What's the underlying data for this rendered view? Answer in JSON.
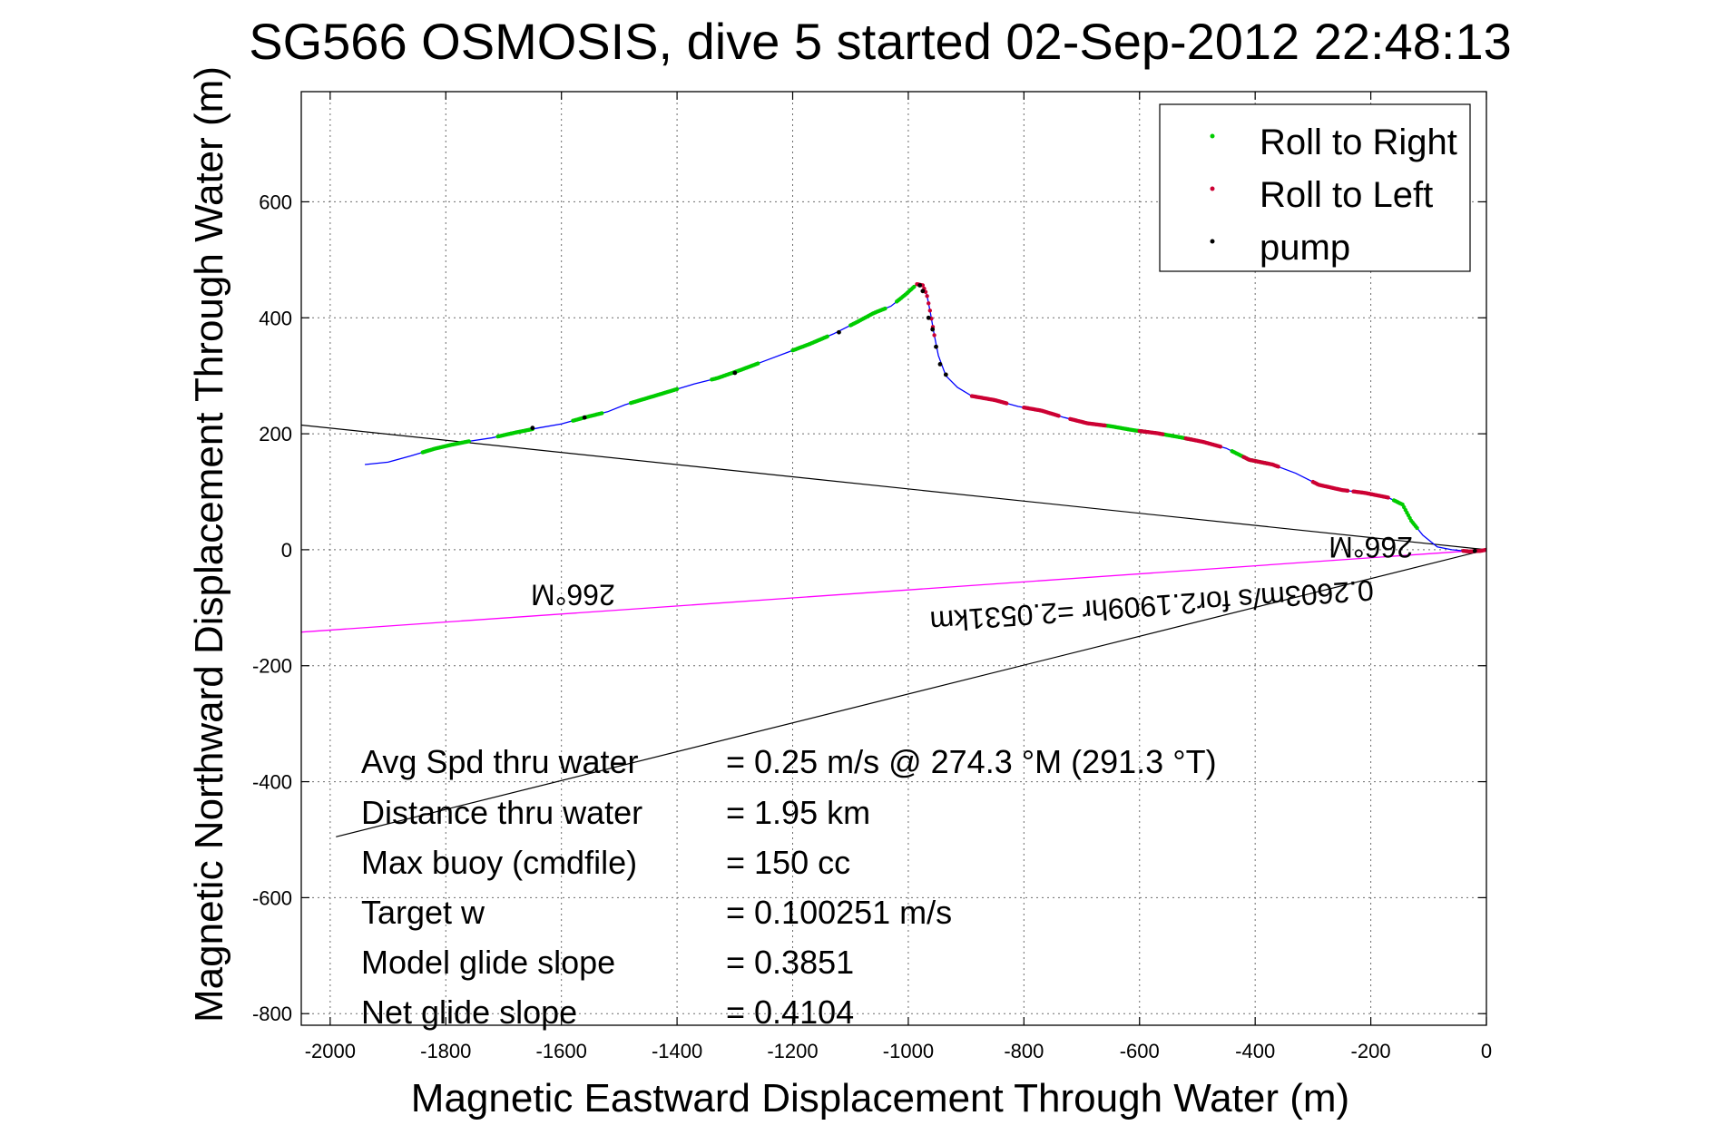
{
  "chart_data": {
    "type": "scatter",
    "title": "SG566 OSMOSIS, dive 5 started 02-Sep-2012 22:48:13",
    "xlabel": "Magnetic Eastward Displacement Through Water (m)",
    "ylabel": "Magnetic Northward Displacement Through Water (m)",
    "xlim": [
      -2050,
      0
    ],
    "ylim": [
      -820,
      790
    ],
    "xticks": [
      -2000,
      -1800,
      -1600,
      -1400,
      -1200,
      -1000,
      -800,
      -600,
      -400,
      -200,
      0
    ],
    "yticks": [
      -800,
      -600,
      -400,
      -200,
      0,
      200,
      400,
      600
    ],
    "grid": true,
    "legend_position": "top-right",
    "legend": [
      "Roll to Right",
      "Roll to Left",
      "pump"
    ],
    "colors": {
      "track": "#0000ff",
      "roll_right": "#00cc00",
      "roll_left": "#cc0033",
      "pump": "#000000",
      "reference_lines": "#000000",
      "current_line": "#ff00ff"
    },
    "track": {
      "name": "track",
      "points": [
        [
          -1940,
          147
        ],
        [
          -1900,
          151
        ],
        [
          -1860,
          162
        ],
        [
          -1820,
          174
        ],
        [
          -1790,
          181
        ],
        [
          -1760,
          187
        ],
        [
          -1720,
          193
        ],
        [
          -1680,
          202
        ],
        [
          -1640,
          210
        ],
        [
          -1600,
          217
        ],
        [
          -1560,
          228
        ],
        [
          -1520,
          238
        ],
        [
          -1490,
          250
        ],
        [
          -1450,
          262
        ],
        [
          -1410,
          274
        ],
        [
          -1370,
          286
        ],
        [
          -1330,
          296
        ],
        [
          -1290,
          310
        ],
        [
          -1250,
          325
        ],
        [
          -1210,
          340
        ],
        [
          -1170,
          355
        ],
        [
          -1130,
          372
        ],
        [
          -1090,
          392
        ],
        [
          -1060,
          408
        ],
        [
          -1030,
          420
        ],
        [
          -1005,
          440
        ],
        [
          -985,
          458
        ],
        [
          -975,
          456
        ],
        [
          -968,
          440
        ],
        [
          -962,
          410
        ],
        [
          -955,
          370
        ],
        [
          -948,
          335
        ],
        [
          -935,
          300
        ],
        [
          -915,
          280
        ],
        [
          -890,
          265
        ],
        [
          -850,
          258
        ],
        [
          -810,
          247
        ],
        [
          -770,
          240
        ],
        [
          -730,
          228
        ],
        [
          -690,
          218
        ],
        [
          -650,
          213
        ],
        [
          -610,
          206
        ],
        [
          -570,
          201
        ],
        [
          -530,
          194
        ],
        [
          -490,
          186
        ],
        [
          -450,
          175
        ],
        [
          -410,
          155
        ],
        [
          -370,
          147
        ],
        [
          -330,
          132
        ],
        [
          -290,
          112
        ],
        [
          -250,
          103
        ],
        [
          -210,
          98
        ],
        [
          -170,
          90
        ],
        [
          -145,
          78
        ],
        [
          -130,
          50
        ],
        [
          -110,
          25
        ],
        [
          -85,
          5
        ],
        [
          -60,
          0
        ],
        [
          -30,
          -3
        ],
        [
          -10,
          -2
        ],
        [
          0,
          0
        ]
      ]
    },
    "roll_right_segments": [
      [
        -1840,
        -1760
      ],
      [
        -1710,
        -1650
      ],
      [
        -1580,
        -1530
      ],
      [
        -1480,
        -1400
      ],
      [
        -1340,
        -1260
      ],
      [
        -1200,
        -1140
      ],
      [
        -1100,
        -1040
      ],
      [
        -1020,
        -990
      ],
      [
        -660,
        -590
      ],
      [
        -560,
        -510
      ],
      [
        -440,
        -380
      ],
      [
        -160,
        -120
      ]
    ],
    "roll_left_segments": [
      [
        -985,
        -955
      ],
      [
        -890,
        -830
      ],
      [
        -800,
        -740
      ],
      [
        -720,
        -660
      ],
      [
        -600,
        -560
      ],
      [
        -520,
        -460
      ],
      [
        -420,
        -360
      ],
      [
        -300,
        -240
      ],
      [
        -230,
        -170
      ],
      [
        -40,
        0
      ]
    ],
    "pump_points": [
      [
        -1650,
        210
      ],
      [
        -1560,
        228
      ],
      [
        -1300,
        305
      ],
      [
        -1120,
        375
      ],
      [
        -980,
        456
      ],
      [
        -975,
        446
      ],
      [
        -965,
        400
      ],
      [
        -958,
        380
      ],
      [
        -952,
        350
      ],
      [
        -945,
        320
      ],
      [
        -935,
        302
      ],
      [
        -20,
        -2
      ]
    ],
    "reference_lines": [
      {
        "name": "heading-line-upper",
        "from": [
          -2050,
          215
        ],
        "to": [
          0,
          0
        ]
      },
      {
        "name": "heading-line-lower",
        "from": [
          -1990,
          -495
        ],
        "to": [
          0,
          0
        ]
      }
    ],
    "current_line": {
      "name": "current-line",
      "from": [
        -2050,
        -142
      ],
      "to": [
        0,
        0
      ]
    },
    "annotations": [
      {
        "text": "266°M",
        "x": -1580,
        "y": -60,
        "rotation": 180
      },
      {
        "text": "266°M",
        "x": -200,
        "y": 22,
        "rotation": 180
      },
      {
        "text": "0.2603m/s for2.1909hr =2.0531km",
        "x": -580,
        "y": -80,
        "rotation": 175.9
      }
    ],
    "stats": [
      {
        "label": "Avg Spd thru water",
        "value": "=  0.25 m/s @ 274.3 °M (291.3 °T)"
      },
      {
        "label": "Distance thru water",
        "value": "=  1.95 km"
      },
      {
        "label": "Max buoy (cmdfile)",
        "value": "= 150 cc"
      },
      {
        "label": "Target w",
        "value": "= 0.100251 m/s"
      },
      {
        "label": "Model glide slope",
        "value": "= 0.3851"
      },
      {
        "label": "Net glide slope",
        "value": "= 0.4104"
      }
    ]
  }
}
